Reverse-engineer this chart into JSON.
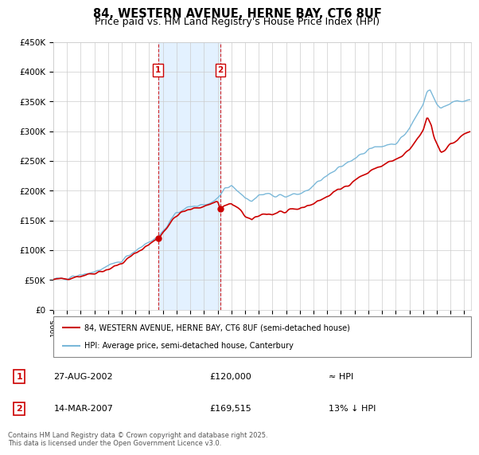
{
  "title": "84, WESTERN AVENUE, HERNE BAY, CT6 8UF",
  "subtitle": "Price paid vs. HM Land Registry's House Price Index (HPI)",
  "ylabel_ticks": [
    "£0",
    "£50K",
    "£100K",
    "£150K",
    "£200K",
    "£250K",
    "£300K",
    "£350K",
    "£400K",
    "£450K"
  ],
  "ylim": [
    0,
    450000
  ],
  "xlim_start": 1995.0,
  "xlim_end": 2025.5,
  "hpi_color": "#7ab8d9",
  "price_color": "#cc0000",
  "bg_shade_color": "#ddeeff",
  "transaction1": {
    "date": "27-AUG-2002",
    "price": 120000,
    "label": "1",
    "year": 2002.65
  },
  "transaction2": {
    "date": "14-MAR-2007",
    "price": 169515,
    "label": "2",
    "year": 2007.2
  },
  "legend_label1": "84, WESTERN AVENUE, HERNE BAY, CT6 8UF (semi-detached house)",
  "legend_label2": "HPI: Average price, semi-detached house, Canterbury",
  "table_row1": [
    "1",
    "27-AUG-2002",
    "£120,000",
    "≈ HPI"
  ],
  "table_row2": [
    "2",
    "14-MAR-2007",
    "£169,515",
    "13% ↓ HPI"
  ],
  "footer": "Contains HM Land Registry data © Crown copyright and database right 2025.\nThis data is licensed under the Open Government Licence v3.0.",
  "grid_color": "#cccccc",
  "title_fontsize": 10.5,
  "subtitle_fontsize": 9
}
